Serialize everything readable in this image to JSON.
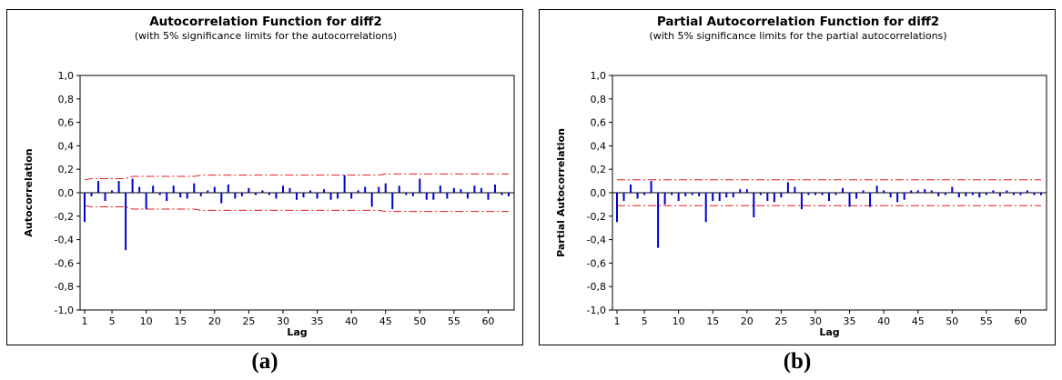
{
  "charts": {
    "a": {
      "title": "Autocorrelation Function for diff2",
      "subtitle": "(with 5% significance limits for the autocorrelations)",
      "ylabel": "Autocorrelation",
      "xlabel": "Lag"
    },
    "b": {
      "title": "Partial Autocorrelation Function for diff2",
      "subtitle": "(with 5% significance limits for the partial autocorrelations)",
      "ylabel": "Partial Autocorrelation",
      "xlabel": "Lag"
    }
  },
  "captions": {
    "a": "(a)",
    "b": "(b)"
  },
  "colors": {
    "bars": "#0000cc",
    "limits": "#e41a1c",
    "axis": "#000000"
  },
  "chart_data": [
    {
      "type": "bar",
      "title": "Autocorrelation Function for diff2",
      "subtitle": "(with 5% significance limits for the autocorrelations)",
      "xlabel": "Lag",
      "ylabel": "Autocorrelation",
      "xlim": [
        1,
        63
      ],
      "ylim": [
        -1.0,
        1.0
      ],
      "xticks": [
        "1",
        "5",
        "10",
        "15",
        "20",
        "25",
        "30",
        "35",
        "40",
        "45",
        "50",
        "55",
        "60"
      ],
      "yticks": [
        "1,0",
        "0,8",
        "0,6",
        "0,4",
        "0,2",
        "0,0",
        "-0,2",
        "-0,4",
        "-0,6",
        "-0,8",
        "-1,0"
      ],
      "lags": [
        1,
        2,
        3,
        4,
        5,
        6,
        7,
        8,
        9,
        10,
        11,
        12,
        13,
        14,
        15,
        16,
        17,
        18,
        19,
        20,
        21,
        22,
        23,
        24,
        25,
        26,
        27,
        28,
        29,
        30,
        31,
        32,
        33,
        34,
        35,
        36,
        37,
        38,
        39,
        40,
        41,
        42,
        43,
        44,
        45,
        46,
        47,
        48,
        49,
        50,
        51,
        52,
        53,
        54,
        55,
        56,
        57,
        58,
        59,
        60,
        61,
        62,
        63
      ],
      "values": [
        -0.25,
        -0.03,
        0.1,
        -0.07,
        0.02,
        0.1,
        -0.49,
        0.12,
        0.05,
        -0.14,
        0.06,
        -0.02,
        -0.07,
        0.06,
        -0.04,
        -0.05,
        0.08,
        -0.03,
        0.02,
        0.05,
        -0.09,
        0.07,
        -0.05,
        -0.03,
        0.04,
        -0.02,
        0.02,
        -0.02,
        -0.05,
        0.06,
        0.04,
        -0.06,
        -0.04,
        0.02,
        -0.05,
        0.03,
        -0.06,
        -0.05,
        0.15,
        -0.05,
        0.02,
        0.05,
        -0.12,
        0.05,
        0.08,
        -0.14,
        0.06,
        -0.02,
        -0.03,
        0.12,
        -0.06,
        -0.06,
        0.06,
        -0.05,
        0.04,
        0.03,
        -0.05,
        0.06,
        0.04,
        -0.06,
        0.07,
        -0.02,
        -0.03
      ],
      "limits_upper": [
        0.11,
        0.12,
        0.12,
        0.12,
        0.12,
        0.12,
        0.12,
        0.14,
        0.14,
        0.14,
        0.14,
        0.14,
        0.14,
        0.14,
        0.14,
        0.14,
        0.14,
        0.15,
        0.15,
        0.15,
        0.15,
        0.15,
        0.15,
        0.15,
        0.15,
        0.15,
        0.15,
        0.15,
        0.15,
        0.15,
        0.15,
        0.15,
        0.15,
        0.15,
        0.15,
        0.15,
        0.15,
        0.15,
        0.15,
        0.15,
        0.15,
        0.15,
        0.15,
        0.15,
        0.16,
        0.16,
        0.16,
        0.16,
        0.16,
        0.16,
        0.16,
        0.16,
        0.16,
        0.16,
        0.16,
        0.16,
        0.16,
        0.16,
        0.16,
        0.16,
        0.16,
        0.16,
        0.16
      ]
    },
    {
      "type": "bar",
      "title": "Partial Autocorrelation Function for diff2",
      "subtitle": "(with 5% significance limits for the partial autocorrelations)",
      "xlabel": "Lag",
      "ylabel": "Partial Autocorrelation",
      "xlim": [
        1,
        63
      ],
      "ylim": [
        -1.0,
        1.0
      ],
      "xticks": [
        "1",
        "5",
        "10",
        "15",
        "20",
        "25",
        "30",
        "35",
        "40",
        "45",
        "50",
        "55",
        "60"
      ],
      "yticks": [
        "1,0",
        "0,8",
        "0,6",
        "0,4",
        "0,2",
        "0,0",
        "-0,2",
        "-0,4",
        "-0,6",
        "-0,8",
        "-1,0"
      ],
      "lags": [
        1,
        2,
        3,
        4,
        5,
        6,
        7,
        8,
        9,
        10,
        11,
        12,
        13,
        14,
        15,
        16,
        17,
        18,
        19,
        20,
        21,
        22,
        23,
        24,
        25,
        26,
        27,
        28,
        29,
        30,
        31,
        32,
        33,
        34,
        35,
        36,
        37,
        38,
        39,
        40,
        41,
        42,
        43,
        44,
        45,
        46,
        47,
        48,
        49,
        50,
        51,
        52,
        53,
        54,
        55,
        56,
        57,
        58,
        59,
        60,
        61,
        62,
        63
      ],
      "values": [
        -0.25,
        -0.07,
        0.07,
        -0.05,
        -0.02,
        0.1,
        -0.47,
        -0.1,
        -0.02,
        -0.07,
        -0.03,
        -0.02,
        -0.03,
        -0.25,
        -0.07,
        -0.07,
        -0.04,
        -0.04,
        0.03,
        0.03,
        -0.21,
        -0.02,
        -0.07,
        -0.08,
        -0.04,
        0.09,
        0.05,
        -0.14,
        -0.02,
        -0.02,
        -0.02,
        -0.07,
        -0.02,
        0.04,
        -0.12,
        -0.05,
        0.02,
        -0.12,
        0.06,
        0.02,
        -0.04,
        -0.08,
        -0.06,
        0.02,
        0.02,
        0.03,
        0.02,
        -0.03,
        -0.02,
        0.05,
        -0.04,
        -0.03,
        -0.02,
        -0.04,
        -0.02,
        0.02,
        -0.03,
        0.02,
        -0.02,
        -0.02,
        0.02,
        -0.02,
        -0.02
      ],
      "limits_upper": [
        0.11,
        0.11,
        0.11,
        0.11,
        0.11,
        0.11,
        0.11,
        0.11,
        0.11,
        0.11,
        0.11,
        0.11,
        0.11,
        0.11,
        0.11,
        0.11,
        0.11,
        0.11,
        0.11,
        0.11,
        0.11,
        0.11,
        0.11,
        0.11,
        0.11,
        0.11,
        0.11,
        0.11,
        0.11,
        0.11,
        0.11,
        0.11,
        0.11,
        0.11,
        0.11,
        0.11,
        0.11,
        0.11,
        0.11,
        0.11,
        0.11,
        0.11,
        0.11,
        0.11,
        0.11,
        0.11,
        0.11,
        0.11,
        0.11,
        0.11,
        0.11,
        0.11,
        0.11,
        0.11,
        0.11,
        0.11,
        0.11,
        0.11,
        0.11,
        0.11,
        0.11,
        0.11,
        0.11
      ]
    }
  ]
}
